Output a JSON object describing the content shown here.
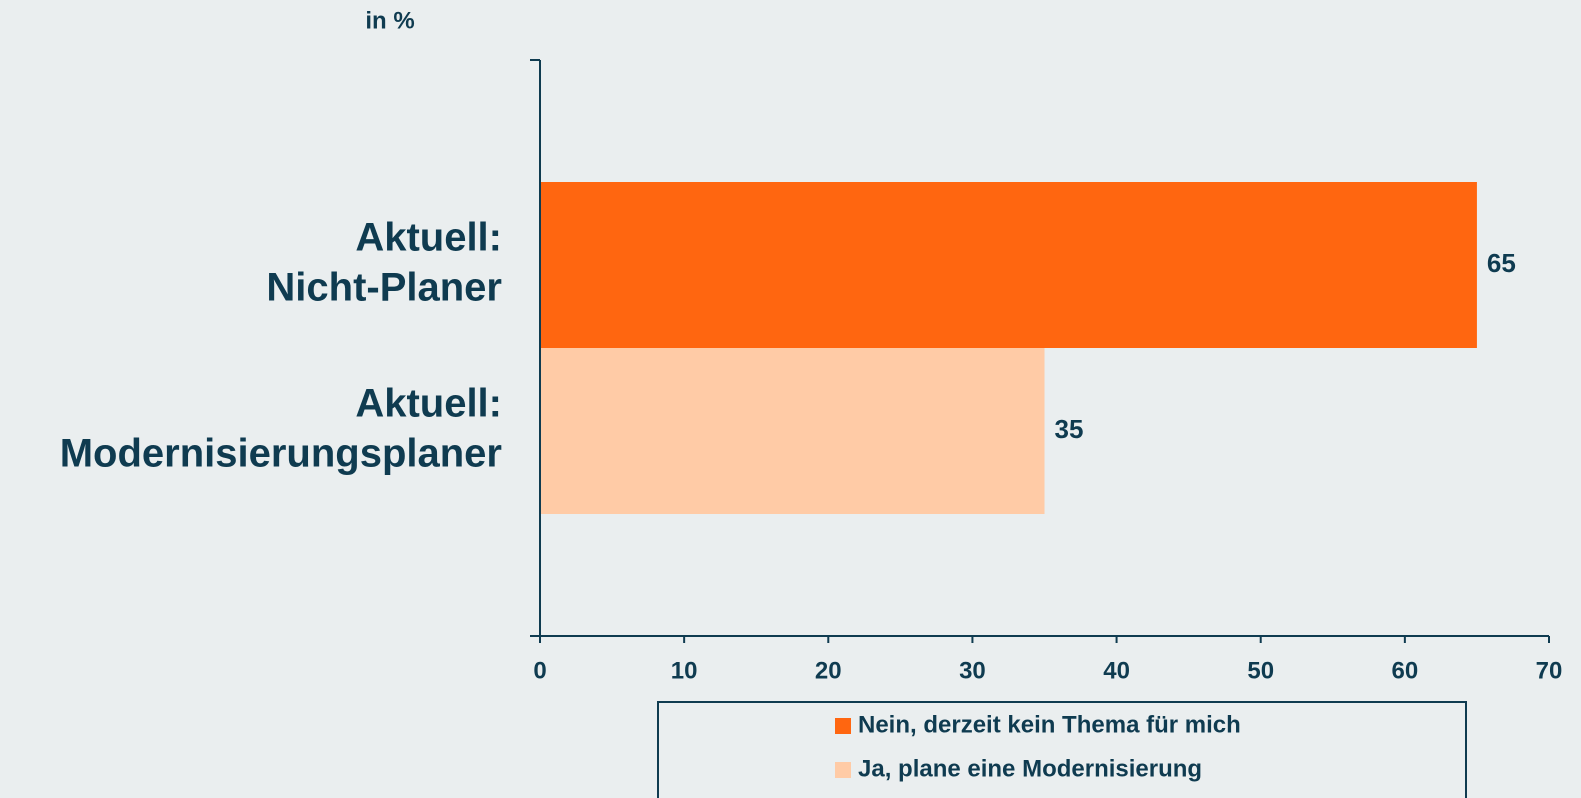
{
  "chart_data": {
    "type": "bar",
    "orientation": "horizontal",
    "y_axis_label": "in %",
    "categories": [
      [
        "Aktuell:",
        "Nicht-Planer"
      ],
      [
        "Aktuell:",
        "Modernisierungsplaner"
      ]
    ],
    "series": [
      {
        "name": "Nein, derzeit kein Thema für mich",
        "color": "#ff6610",
        "values": [
          65,
          null
        ]
      },
      {
        "name": "Ja, plane eine Modernisierung",
        "color": "#ffcba6",
        "values": [
          null,
          35
        ]
      }
    ],
    "xlim": [
      0,
      70
    ],
    "xticks": [
      0,
      10,
      20,
      30,
      40,
      50,
      60,
      70
    ],
    "legend": "bottom"
  }
}
